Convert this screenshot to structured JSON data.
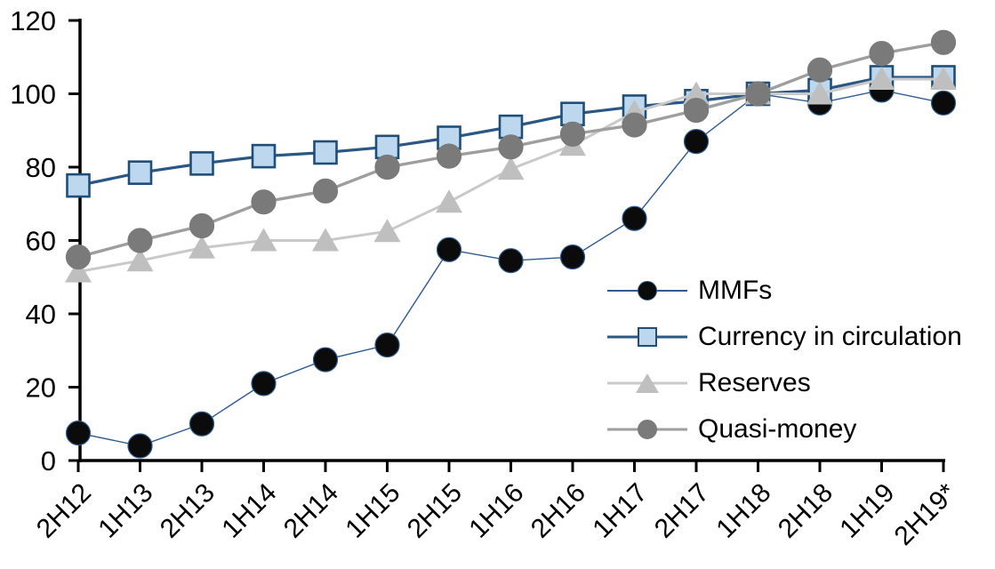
{
  "chart_data": {
    "type": "line",
    "title": "",
    "xlabel": "",
    "ylabel": "",
    "categories": [
      "2H12",
      "1H13",
      "2H13",
      "1H14",
      "2H14",
      "1H15",
      "2H15",
      "1H16",
      "2H16",
      "1H17",
      "2H17",
      "1H18",
      "2H18",
      "1H19",
      "2H19*"
    ],
    "series": [
      {
        "name": "MMFs",
        "marker": "circle",
        "marker_fill": "#0b0b0b",
        "marker_stroke": "#2e5b8f",
        "line_color": "#2e5b8f",
        "line_width": 1.4,
        "values": [
          7.5,
          4,
          10,
          21,
          27.5,
          31.5,
          57.5,
          54.5,
          55.5,
          66,
          87,
          100,
          97.5,
          101,
          97.5
        ]
      },
      {
        "name": "Currency in circulation",
        "marker": "square",
        "marker_fill": "#bdd7ee",
        "marker_stroke": "#1f4e79",
        "line_color": "#2a5784",
        "line_width": 3.2,
        "values": [
          75,
          78.5,
          81,
          83,
          84,
          85.5,
          88,
          91,
          94.5,
          96.5,
          98,
          100,
          101,
          104.5,
          104.5
        ]
      },
      {
        "name": "Reserves",
        "marker": "triangle",
        "marker_fill": "#bfbfbf",
        "marker_stroke": "#bfbfbf",
        "line_color": "#c9c9c9",
        "line_width": 3,
        "values": [
          51.5,
          54.5,
          58,
          60,
          60,
          62.5,
          70.5,
          79.5,
          86,
          95,
          100,
          100,
          100,
          104,
          104
        ]
      },
      {
        "name": "Quasi-money",
        "marker": "circle",
        "marker_fill": "#7a7a7a",
        "marker_stroke": "#7a7a7a",
        "line_color": "#9e9e9e",
        "line_width": 3.4,
        "values": [
          55.5,
          60,
          64,
          70.5,
          73.5,
          80,
          83,
          85.5,
          89,
          91.5,
          95.5,
          100,
          106.5,
          111,
          114
        ]
      }
    ],
    "y_axis": {
      "min": 0,
      "max": 120,
      "step": 20,
      "tick_labels": [
        "0",
        "20",
        "40",
        "60",
        "80",
        "100",
        "120"
      ]
    },
    "x_axis": {
      "tick_label_rotation_deg": -45
    },
    "legend": {
      "position": "inside-right",
      "entries": [
        "MMFs",
        "Currency in circulation",
        "Reserves",
        "Quasi-money"
      ]
    },
    "grid": false,
    "axis_color": "#000000",
    "background_color": "#ffffff"
  }
}
